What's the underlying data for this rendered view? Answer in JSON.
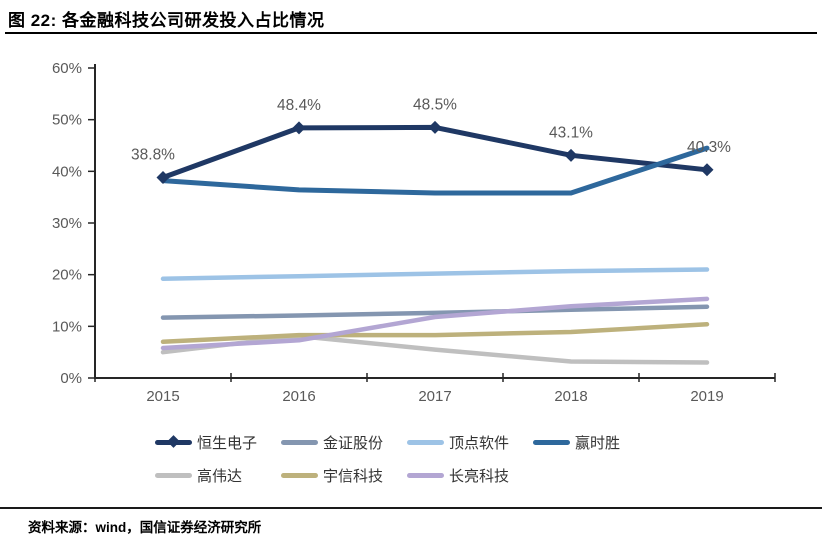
{
  "header": {
    "title": "图 22: 各金融科技公司研发投入占比情况"
  },
  "footer": {
    "source": "资料来源：wind，国信证券经济研究所"
  },
  "chart_data": {
    "type": "line",
    "title": "图 22: 各金融科技公司研发投入占比情况",
    "categories": [
      "2015",
      "2016",
      "2017",
      "2018",
      "2019"
    ],
    "series": [
      {
        "name": "恒生电子",
        "color": "#1F3864",
        "line_width": 5,
        "marker": "diamond",
        "values": [
          38.8,
          48.4,
          48.5,
          43.1,
          40.3
        ],
        "data_labels": [
          "38.8%",
          "48.4%",
          "48.5%",
          "43.1%",
          "40.3%"
        ]
      },
      {
        "name": "金证股份",
        "color": "#8496B0",
        "line_width": 4.5,
        "values": [
          11.7,
          12.1,
          12.6,
          13.2,
          13.8
        ]
      },
      {
        "name": "顶点软件",
        "color": "#9DC3E6",
        "line_width": 4.5,
        "values": [
          19.2,
          19.7,
          20.2,
          20.7,
          21.0
        ]
      },
      {
        "name": "赢时胜",
        "color": "#2E689C",
        "line_width": 5,
        "values": [
          38.2,
          36.4,
          35.8,
          35.8,
          44.5
        ]
      },
      {
        "name": "高伟达",
        "color": "#BFBFBF",
        "line_width": 4.5,
        "values": [
          5.0,
          8.1,
          5.5,
          3.2,
          3.0
        ]
      },
      {
        "name": "宇信科技",
        "color": "#BDB17C",
        "line_width": 4.5,
        "values": [
          7.0,
          8.3,
          8.3,
          8.9,
          10.4
        ]
      },
      {
        "name": "长亮科技",
        "color": "#B3A6D3",
        "line_width": 4.5,
        "values": [
          5.8,
          7.3,
          11.8,
          13.9,
          15.3
        ]
      }
    ],
    "ylim": [
      0,
      60
    ],
    "ytick_labels": [
      "0%",
      "10%",
      "20%",
      "30%",
      "40%",
      "50%",
      "60%"
    ],
    "xlabel": "",
    "ylabel": "",
    "grid": false,
    "legend_position": "bottom",
    "legend_rows": [
      [
        0,
        1,
        2,
        3
      ],
      [
        4,
        5,
        6
      ]
    ],
    "axis_color": "#262626",
    "tick_label_color": "#595959",
    "data_label_color": "#595959"
  }
}
